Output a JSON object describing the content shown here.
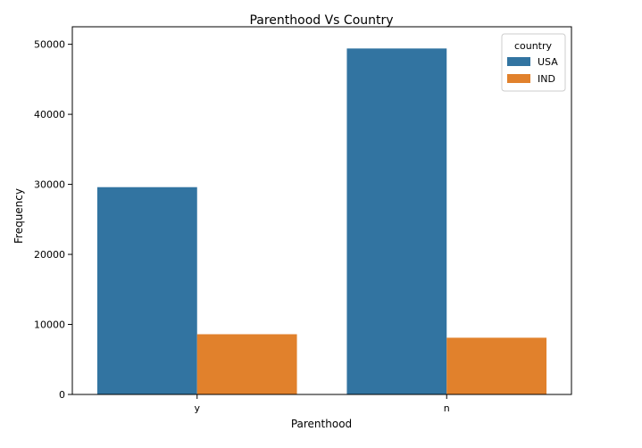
{
  "chart_data": {
    "type": "bar",
    "title": "Parenthood Vs Country",
    "xlabel": "Parenthood",
    "ylabel": "Frequency",
    "categories": [
      "y",
      "n"
    ],
    "ylim": [
      0,
      52500
    ],
    "yticks": [
      0,
      10000,
      20000,
      30000,
      40000,
      50000
    ],
    "legend_title": "country",
    "legend_position": "top-right",
    "grid": false,
    "series": [
      {
        "name": "USA",
        "color": "#3274a1",
        "values": [
          29600,
          49400
        ]
      },
      {
        "name": "IND",
        "color": "#e1812c",
        "values": [
          8600,
          8100
        ]
      }
    ]
  }
}
